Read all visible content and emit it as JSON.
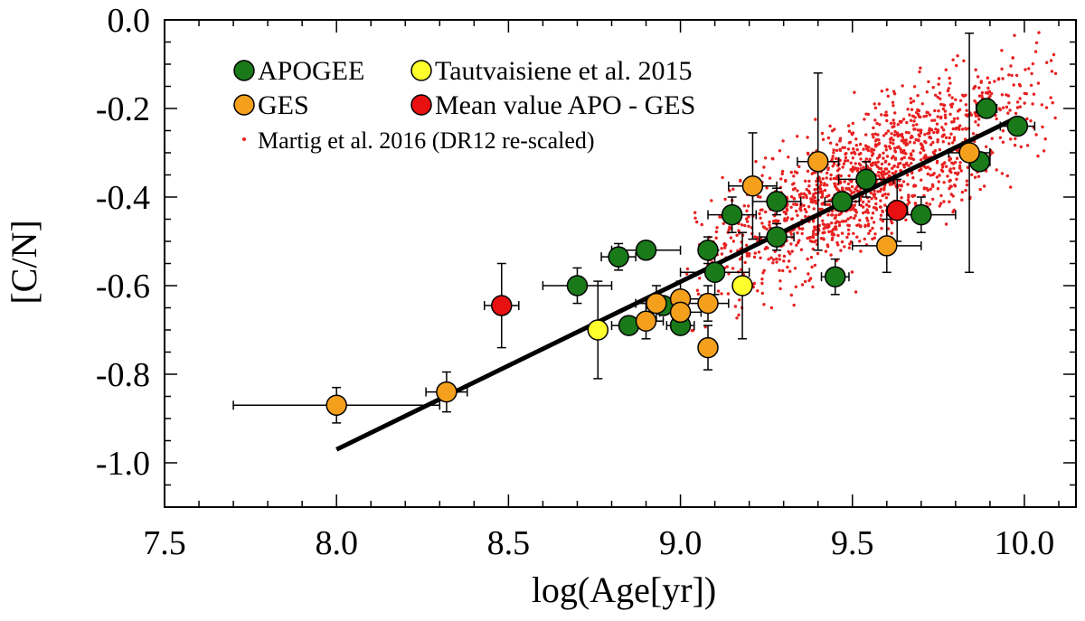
{
  "chart_data": {
    "type": "scatter",
    "xlabel": "log(Age[yr])",
    "ylabel": "[C/N]",
    "xlim": [
      7.5,
      10.15
    ],
    "ylim": [
      -1.1,
      0.0
    ],
    "x_ticks": [
      7.5,
      8.0,
      8.5,
      9.0,
      9.5,
      10.0
    ],
    "x_tick_labels": [
      "7.5",
      "8.0",
      "8.5",
      "9.0",
      "9.5",
      "10.0"
    ],
    "y_ticks": [
      0.0,
      -0.2,
      -0.4,
      -0.6,
      -0.8,
      -1.0
    ],
    "y_tick_labels": [
      "0.0",
      "-0.2",
      "-0.4",
      "-0.6",
      "-0.8",
      "-1.0"
    ],
    "colors": {
      "APOGEE": "#1a7a1a",
      "GES": "#f5a01c",
      "Tautvaisiene": "#ffff2e",
      "Mean": "#e81010",
      "Martig": "#e82020",
      "fit": "#000000"
    },
    "legend": [
      {
        "key": "APOGEE",
        "label": "APOGEE",
        "marker": "circle"
      },
      {
        "key": "Tautvaisiene",
        "label": "Tautvaisiene et al. 2015",
        "marker": "circle"
      },
      {
        "key": "GES",
        "label": "GES",
        "marker": "circle"
      },
      {
        "key": "Mean",
        "label": "Mean value APO - GES",
        "marker": "circle"
      },
      {
        "key": "Martig",
        "label": "Martig et al. 2016 (DR12 re-scaled)",
        "marker": "dot"
      }
    ],
    "fit_line": {
      "x": [
        8.0,
        9.98
      ],
      "y": [
        -0.97,
        -0.22
      ]
    },
    "series": [
      {
        "name": "APOGEE",
        "points": [
          {
            "x": 8.7,
            "y": -0.6,
            "xerr": 0.1,
            "yerr": 0.04
          },
          {
            "x": 8.82,
            "y": -0.535,
            "xerr": 0.05,
            "yerr": 0.03
          },
          {
            "x": 8.9,
            "y": -0.52,
            "xerr": 0.1,
            "yerr": 0.02
          },
          {
            "x": 8.85,
            "y": -0.69,
            "xerr": 0.05,
            "yerr": 0.02
          },
          {
            "x": 8.95,
            "y": -0.645,
            "xerr": 0.05,
            "yerr": 0.02
          },
          {
            "x": 9.0,
            "y": -0.69,
            "xerr": 0.04,
            "yerr": 0.02
          },
          {
            "x": 9.08,
            "y": -0.52,
            "xerr": 0.02,
            "yerr": 0.03
          },
          {
            "x": 9.1,
            "y": -0.57,
            "xerr": 0.1,
            "yerr": 0.05
          },
          {
            "x": 9.15,
            "y": -0.44,
            "xerr": 0.07,
            "yerr": 0.04
          },
          {
            "x": 9.28,
            "y": -0.41,
            "xerr": 0.07,
            "yerr": 0.03
          },
          {
            "x": 9.28,
            "y": -0.49,
            "xerr": 0.05,
            "yerr": 0.03
          },
          {
            "x": 9.45,
            "y": -0.58,
            "xerr": 0.04,
            "yerr": 0.04
          },
          {
            "x": 9.47,
            "y": -0.41,
            "xerr": 0.05,
            "yerr": 0.02
          },
          {
            "x": 9.54,
            "y": -0.36,
            "xerr": 0.08,
            "yerr": 0.04
          },
          {
            "x": 9.7,
            "y": -0.44,
            "xerr": 0.1,
            "yerr": 0.04
          },
          {
            "x": 9.87,
            "y": -0.32,
            "xerr": 0.03,
            "yerr": 0.02
          },
          {
            "x": 9.89,
            "y": -0.2,
            "xerr": 0.03,
            "yerr": 0.02
          },
          {
            "x": 9.98,
            "y": -0.24,
            "xerr": 0.05,
            "yerr": 0.02
          }
        ]
      },
      {
        "name": "GES",
        "points": [
          {
            "x": 8.0,
            "y": -0.87,
            "xerr": 0.3,
            "yerr": 0.04
          },
          {
            "x": 8.32,
            "y": -0.84,
            "xerr": 0.06,
            "yerr": 0.045
          },
          {
            "x": 8.9,
            "y": -0.68,
            "xerr": 0.05,
            "yerr": 0.04
          },
          {
            "x": 8.93,
            "y": -0.64,
            "xerr": 0.06,
            "yerr": 0.04
          },
          {
            "x": 9.0,
            "y": -0.63,
            "xerr": 0.06,
            "yerr": 0.04
          },
          {
            "x": 9.0,
            "y": -0.66,
            "xerr": 0.06,
            "yerr": 0.04
          },
          {
            "x": 9.08,
            "y": -0.64,
            "xerr": 0.06,
            "yerr": 0.04
          },
          {
            "x": 9.08,
            "y": -0.74,
            "xerr": 0.02,
            "yerr": 0.05
          },
          {
            "x": 9.21,
            "y": -0.375,
            "xerr": 0.07,
            "yerr": 0.12
          },
          {
            "x": 9.4,
            "y": -0.32,
            "xerr": 0.06,
            "yerr": 0.2
          },
          {
            "x": 9.6,
            "y": -0.51,
            "xerr": 0.1,
            "yerr": 0.06
          },
          {
            "x": 9.84,
            "y": -0.3,
            "xerr": 0.06,
            "yerr": 0.27
          }
        ]
      },
      {
        "name": "Tautvaisiene",
        "points": [
          {
            "x": 8.76,
            "y": -0.7,
            "xerr": 0.02,
            "yerr": 0.11
          },
          {
            "x": 9.18,
            "y": -0.6,
            "xerr": 0.02,
            "yerr": 0.12
          }
        ]
      },
      {
        "name": "Mean",
        "points": [
          {
            "x": 8.48,
            "y": -0.645,
            "xerr": 0.05,
            "yerr": 0.095
          },
          {
            "x": 9.63,
            "y": -0.43,
            "xerr": 0.03,
            "yerr": 0.07
          }
        ]
      }
    ],
    "cloud": {
      "name": "Martig",
      "description": "red dots scattered over roughly 9.0–10.1 in log age, [C/N] from -0.9 to 0.0, denser toward older ages"
    }
  }
}
